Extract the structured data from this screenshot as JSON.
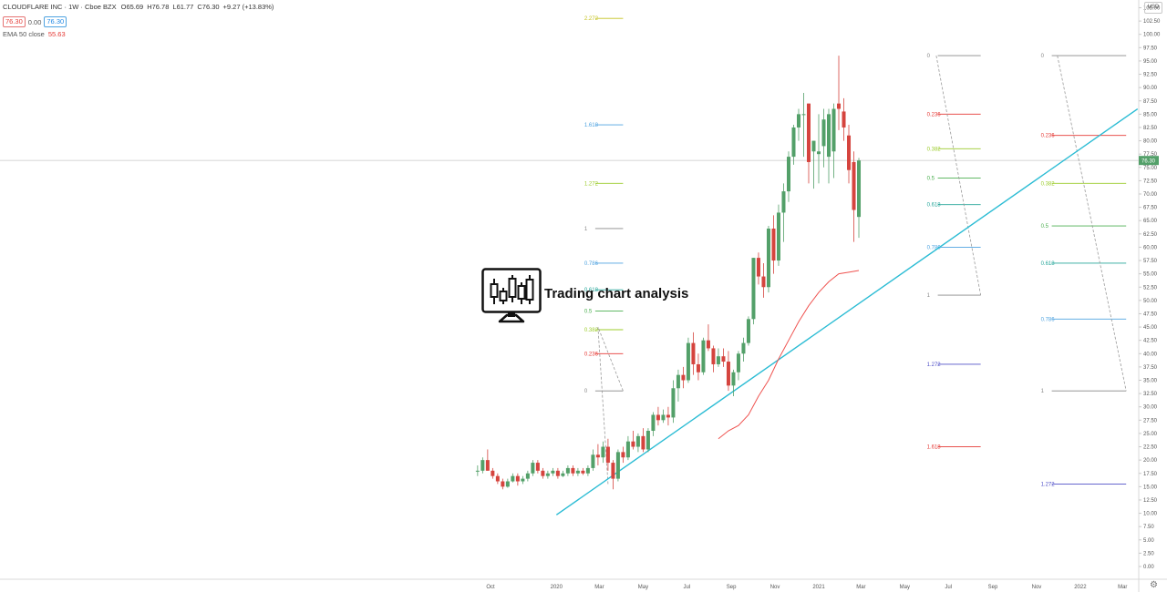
{
  "header": {
    "symbol": "CLOUDFLARE INC · 1W · Cboe BZX",
    "open": "O65.69",
    "high": "H76.78",
    "low": "L61.77",
    "close": "C76.30",
    "change": "+9.27 (+13.83%)",
    "bid": "76.30",
    "spread": "0.00",
    "ask": "76.30",
    "indicator_label": "EMA 50 close",
    "indicator_value": "55.63"
  },
  "currency": "USD",
  "logo": {
    "text": "Trading chart analysis",
    "icon": "candlestick-monitor-icon"
  },
  "settings_icon": "gear-icon",
  "chart_data": {
    "type": "candlestick",
    "y_axis": {
      "min": 0,
      "max": 105,
      "step": 2.5,
      "side": "right"
    },
    "x_axis_labels": [
      {
        "label": "Oct",
        "date": "2019-10-01"
      },
      {
        "label": "2020",
        "date": "2020-01-01"
      },
      {
        "label": "Mar",
        "date": "2020-03-01"
      },
      {
        "label": "May",
        "date": "2020-05-01"
      },
      {
        "label": "Jul",
        "date": "2020-07-01"
      },
      {
        "label": "Sep",
        "date": "2020-09-01"
      },
      {
        "label": "Nov",
        "date": "2020-11-01"
      },
      {
        "label": "2021",
        "date": "2021-01-01"
      },
      {
        "label": "Mar",
        "date": "2021-03-01"
      },
      {
        "label": "May",
        "date": "2021-05-01"
      },
      {
        "label": "Jul",
        "date": "2021-07-01"
      },
      {
        "label": "Sep",
        "date": "2021-09-01"
      },
      {
        "label": "Nov",
        "date": "2021-11-01"
      },
      {
        "label": "2022",
        "date": "2022-01-01"
      },
      {
        "label": "Mar",
        "date": "2022-03-01"
      }
    ],
    "candles": [
      {
        "date": "2019-09-13",
        "o": 18,
        "h": 19,
        "l": 17,
        "c": 18
      },
      {
        "date": "2019-09-20",
        "o": 18,
        "h": 20.5,
        "l": 17.5,
        "c": 20
      },
      {
        "date": "2019-09-27",
        "o": 20,
        "h": 22,
        "l": 18,
        "c": 18
      },
      {
        "date": "2019-10-04",
        "o": 18,
        "h": 18.5,
        "l": 16.5,
        "c": 17
      },
      {
        "date": "2019-10-11",
        "o": 17,
        "h": 17.5,
        "l": 15.5,
        "c": 16
      },
      {
        "date": "2019-10-18",
        "o": 16,
        "h": 16.5,
        "l": 14.5,
        "c": 15
      },
      {
        "date": "2019-10-25",
        "o": 15,
        "h": 16.5,
        "l": 14.8,
        "c": 16
      },
      {
        "date": "2019-11-01",
        "o": 16,
        "h": 17.5,
        "l": 15.8,
        "c": 17
      },
      {
        "date": "2019-11-08",
        "o": 17,
        "h": 17.5,
        "l": 15.2,
        "c": 16
      },
      {
        "date": "2019-11-15",
        "o": 16,
        "h": 17,
        "l": 15.5,
        "c": 16.5
      },
      {
        "date": "2019-11-22",
        "o": 16.5,
        "h": 18,
        "l": 16,
        "c": 17.5
      },
      {
        "date": "2019-11-29",
        "o": 17.5,
        "h": 20,
        "l": 17,
        "c": 19.5
      },
      {
        "date": "2019-12-06",
        "o": 19.5,
        "h": 20,
        "l": 17.5,
        "c": 18
      },
      {
        "date": "2019-12-13",
        "o": 18,
        "h": 18.5,
        "l": 16.5,
        "c": 17
      },
      {
        "date": "2019-12-20",
        "o": 17,
        "h": 18,
        "l": 16.5,
        "c": 17.5
      },
      {
        "date": "2019-12-27",
        "o": 17.5,
        "h": 18.5,
        "l": 17,
        "c": 18
      },
      {
        "date": "2020-01-03",
        "o": 18,
        "h": 18.5,
        "l": 16.5,
        "c": 17
      },
      {
        "date": "2020-01-10",
        "o": 17,
        "h": 18,
        "l": 16.8,
        "c": 17.5
      },
      {
        "date": "2020-01-17",
        "o": 17.5,
        "h": 19,
        "l": 17,
        "c": 18.5
      },
      {
        "date": "2020-01-24",
        "o": 18.5,
        "h": 19,
        "l": 17,
        "c": 17.5
      },
      {
        "date": "2020-01-31",
        "o": 17.5,
        "h": 18.5,
        "l": 17,
        "c": 18
      },
      {
        "date": "2020-02-07",
        "o": 18,
        "h": 18.5,
        "l": 17.2,
        "c": 17.5
      },
      {
        "date": "2020-02-14",
        "o": 17.5,
        "h": 19,
        "l": 17,
        "c": 18.5
      },
      {
        "date": "2020-02-21",
        "o": 18.5,
        "h": 22,
        "l": 18,
        "c": 21
      },
      {
        "date": "2020-02-28",
        "o": 21,
        "h": 23,
        "l": 19,
        "c": 20.5
      },
      {
        "date": "2020-03-06",
        "o": 20.5,
        "h": 23.5,
        "l": 19.5,
        "c": 22.5
      },
      {
        "date": "2020-03-13",
        "o": 22.5,
        "h": 24,
        "l": 18,
        "c": 19.5
      },
      {
        "date": "2020-03-20",
        "o": 19.5,
        "h": 20,
        "l": 14.5,
        "c": 16.5
      },
      {
        "date": "2020-03-27",
        "o": 16.5,
        "h": 22,
        "l": 16,
        "c": 21.5
      },
      {
        "date": "2020-04-03",
        "o": 21.5,
        "h": 22.5,
        "l": 19.5,
        "c": 20.5
      },
      {
        "date": "2020-04-10",
        "o": 20.5,
        "h": 24.5,
        "l": 20,
        "c": 23.5
      },
      {
        "date": "2020-04-17",
        "o": 23.5,
        "h": 25.5,
        "l": 22,
        "c": 22.5
      },
      {
        "date": "2020-04-24",
        "o": 22.5,
        "h": 25,
        "l": 21.5,
        "c": 24.5
      },
      {
        "date": "2020-05-01",
        "o": 24.5,
        "h": 26,
        "l": 21.5,
        "c": 22
      },
      {
        "date": "2020-05-08",
        "o": 22,
        "h": 26,
        "l": 21.5,
        "c": 25.5
      },
      {
        "date": "2020-05-15",
        "o": 25.5,
        "h": 29,
        "l": 24.5,
        "c": 28.5
      },
      {
        "date": "2020-05-22",
        "o": 28.5,
        "h": 30,
        "l": 26.5,
        "c": 27.5
      },
      {
        "date": "2020-05-29",
        "o": 27.5,
        "h": 29.5,
        "l": 27,
        "c": 28.5
      },
      {
        "date": "2020-06-05",
        "o": 28.5,
        "h": 30,
        "l": 26.5,
        "c": 28
      },
      {
        "date": "2020-06-12",
        "o": 28,
        "h": 35,
        "l": 27,
        "c": 33.5
      },
      {
        "date": "2020-06-19",
        "o": 33.5,
        "h": 37,
        "l": 31,
        "c": 36
      },
      {
        "date": "2020-06-26",
        "o": 36,
        "h": 37.5,
        "l": 33.5,
        "c": 35
      },
      {
        "date": "2020-07-03",
        "o": 35,
        "h": 43,
        "l": 34.5,
        "c": 42
      },
      {
        "date": "2020-07-10",
        "o": 42,
        "h": 44,
        "l": 36,
        "c": 38
      },
      {
        "date": "2020-07-17",
        "o": 38,
        "h": 40,
        "l": 35,
        "c": 36.5
      },
      {
        "date": "2020-07-24",
        "o": 36.5,
        "h": 43,
        "l": 36,
        "c": 42.5
      },
      {
        "date": "2020-07-31",
        "o": 42.5,
        "h": 45.5,
        "l": 40.5,
        "c": 41
      },
      {
        "date": "2020-08-07",
        "o": 41,
        "h": 41.5,
        "l": 36.5,
        "c": 38
      },
      {
        "date": "2020-08-14",
        "o": 38,
        "h": 41,
        "l": 37.5,
        "c": 39.5
      },
      {
        "date": "2020-08-21",
        "o": 39.5,
        "h": 41,
        "l": 37.5,
        "c": 38.5
      },
      {
        "date": "2020-08-28",
        "o": 38.5,
        "h": 40.5,
        "l": 33,
        "c": 34
      },
      {
        "date": "2020-09-04",
        "o": 34,
        "h": 37,
        "l": 32,
        "c": 36.5
      },
      {
        "date": "2020-09-11",
        "o": 36.5,
        "h": 40.5,
        "l": 35,
        "c": 40
      },
      {
        "date": "2020-09-18",
        "o": 40,
        "h": 43,
        "l": 38.5,
        "c": 42
      },
      {
        "date": "2020-09-25",
        "o": 42,
        "h": 47,
        "l": 41.5,
        "c": 46.5
      },
      {
        "date": "2020-10-02",
        "o": 46.5,
        "h": 58,
        "l": 45.5,
        "c": 58
      },
      {
        "date": "2020-10-09",
        "o": 58,
        "h": 59,
        "l": 53,
        "c": 54.5
      },
      {
        "date": "2020-10-16",
        "o": 54.5,
        "h": 57,
        "l": 50.5,
        "c": 52.5
      },
      {
        "date": "2020-10-23",
        "o": 52.5,
        "h": 64,
        "l": 51.5,
        "c": 63.5
      },
      {
        "date": "2020-10-30",
        "o": 63.5,
        "h": 66,
        "l": 55,
        "c": 57.5
      },
      {
        "date": "2020-11-06",
        "o": 57.5,
        "h": 68,
        "l": 56.5,
        "c": 66.5
      },
      {
        "date": "2020-11-13",
        "o": 66.5,
        "h": 72,
        "l": 61,
        "c": 70.5
      },
      {
        "date": "2020-11-20",
        "o": 70.5,
        "h": 78,
        "l": 68.5,
        "c": 77
      },
      {
        "date": "2020-11-27",
        "o": 77,
        "h": 83,
        "l": 75.5,
        "c": 82.5
      },
      {
        "date": "2020-12-04",
        "o": 82.5,
        "h": 86,
        "l": 80,
        "c": 85
      },
      {
        "date": "2020-12-11",
        "o": 85,
        "h": 89,
        "l": 77,
        "c": 85
      },
      {
        "date": "2020-12-18",
        "o": 87,
        "h": 87,
        "l": 72,
        "c": 76
      },
      {
        "date": "2020-12-25",
        "o": 78,
        "h": 80,
        "l": 71,
        "c": 80
      },
      {
        "date": "2021-01-01",
        "o": 77.5,
        "h": 85,
        "l": 72,
        "c": 78
      },
      {
        "date": "2021-01-08",
        "o": 79,
        "h": 86,
        "l": 75,
        "c": 84
      },
      {
        "date": "2021-01-15",
        "o": 77,
        "h": 86,
        "l": 72,
        "c": 85
      },
      {
        "date": "2021-01-22",
        "o": 78,
        "h": 87,
        "l": 73,
        "c": 86
      },
      {
        "date": "2021-01-29",
        "o": 87,
        "h": 96,
        "l": 82,
        "c": 86
      },
      {
        "date": "2021-02-05",
        "o": 85.5,
        "h": 88,
        "l": 80,
        "c": 82.5
      },
      {
        "date": "2021-02-12",
        "o": 81,
        "h": 83,
        "l": 72,
        "c": 74.5
      },
      {
        "date": "2021-02-19",
        "o": 76,
        "h": 78,
        "l": 61,
        "c": 67
      },
      {
        "date": "2021-02-26",
        "o": 65.69,
        "h": 76.78,
        "l": 61.77,
        "c": 76.3
      }
    ],
    "ema_series": {
      "name": "EMA 50 close",
      "points": [
        {
          "date": "2020-08-14",
          "v": 24
        },
        {
          "date": "2020-08-28",
          "v": 25.5
        },
        {
          "date": "2020-09-11",
          "v": 26.5
        },
        {
          "date": "2020-09-25",
          "v": 28.5
        },
        {
          "date": "2020-10-09",
          "v": 32
        },
        {
          "date": "2020-10-23",
          "v": 35
        },
        {
          "date": "2020-11-06",
          "v": 39
        },
        {
          "date": "2020-11-20",
          "v": 42.5
        },
        {
          "date": "2020-12-04",
          "v": 46
        },
        {
          "date": "2020-12-18",
          "v": 49
        },
        {
          "date": "2021-01-01",
          "v": 51.5
        },
        {
          "date": "2021-01-15",
          "v": 53.5
        },
        {
          "date": "2021-01-29",
          "v": 55
        },
        {
          "date": "2021-02-12",
          "v": 55.3
        },
        {
          "date": "2021-02-26",
          "v": 55.63
        }
      ]
    },
    "trendline": {
      "start": {
        "date": "2020-01-01",
        "v": 9.7
      },
      "end": {
        "date": "2022-03-22",
        "v": 86
      }
    },
    "price_line": {
      "value": 76.3,
      "label": "76.30"
    },
    "fib_sets": [
      {
        "name": "fib-set-1",
        "start_date": "2020-02-14",
        "end_date": "2020-04-03",
        "diagonal": [
          {
            "date": "2020-03-13",
            "v": 15.5
          },
          {
            "date": "2020-02-28",
            "v": 45
          },
          {
            "date": "2020-04-03",
            "v": 33
          }
        ],
        "levels": [
          {
            "label": "2.272",
            "v": 103,
            "color": "#c4c21d"
          },
          {
            "label": "1.618",
            "v": 83,
            "color": "#4fa3e0"
          },
          {
            "label": "1.272",
            "v": 72,
            "color": "#9ccc2b"
          },
          {
            "label": "1",
            "v": 63.5,
            "color": "#888888"
          },
          {
            "label": "0.786",
            "v": 57,
            "color": "#4fa3e0"
          },
          {
            "label": "0.618",
            "v": 52,
            "color": "#26a69a"
          },
          {
            "label": "0.5",
            "v": 48,
            "color": "#4caf50"
          },
          {
            "label": "0.382",
            "v": 44.5,
            "color": "#9ccc2b"
          },
          {
            "label": "0.236",
            "v": 40,
            "color": "#e53935"
          },
          {
            "label": "0",
            "v": 33,
            "color": "#888888"
          }
        ]
      },
      {
        "name": "fib-set-2",
        "start_date": "2021-06-06",
        "end_date": "2021-08-15",
        "diagonal": [
          {
            "date": "2021-06-14",
            "v": 96
          },
          {
            "date": "2021-08-15",
            "v": 51
          }
        ],
        "levels": [
          {
            "label": "0",
            "v": 96,
            "color": "#888888"
          },
          {
            "label": "0.236",
            "v": 85,
            "color": "#e53935"
          },
          {
            "label": "0.382",
            "v": 78.5,
            "color": "#9ccc2b"
          },
          {
            "label": "0.5",
            "v": 73,
            "color": "#4caf50"
          },
          {
            "label": "0.618",
            "v": 68,
            "color": "#26a69a"
          },
          {
            "label": "0.786",
            "v": 60,
            "color": "#4fa3e0"
          },
          {
            "label": "1",
            "v": 51,
            "color": "#888888"
          },
          {
            "label": "1.272",
            "v": 38,
            "color": "#5050c8"
          },
          {
            "label": "1.618",
            "v": 22.5,
            "color": "#e53935"
          }
        ]
      },
      {
        "name": "fib-set-3",
        "start_date": "2021-11-12",
        "end_date": "2022-03-06",
        "diagonal": [
          {
            "date": "2021-11-30",
            "v": 96
          },
          {
            "date": "2022-03-06",
            "v": 33
          }
        ],
        "levels": [
          {
            "label": "0",
            "v": 96,
            "color": "#888888"
          },
          {
            "label": "0.236",
            "v": 81,
            "color": "#e53935"
          },
          {
            "label": "0.382",
            "v": 72,
            "color": "#9ccc2b"
          },
          {
            "label": "0.5",
            "v": 64,
            "color": "#4caf50"
          },
          {
            "label": "0.618",
            "v": 57,
            "color": "#26a69a"
          },
          {
            "label": "0.786",
            "v": 46.5,
            "color": "#4fa3e0"
          },
          {
            "label": "1",
            "v": 33,
            "color": "#888888"
          },
          {
            "label": "1.272",
            "v": 15.5,
            "color": "#5050c8"
          }
        ]
      }
    ],
    "colors": {
      "up": "#53a069",
      "down": "#d5443e",
      "ema": "#ef5350",
      "trendline": "#2bbcd4",
      "grid_bg": "#ffffff",
      "axis_text": "#555555"
    }
  }
}
